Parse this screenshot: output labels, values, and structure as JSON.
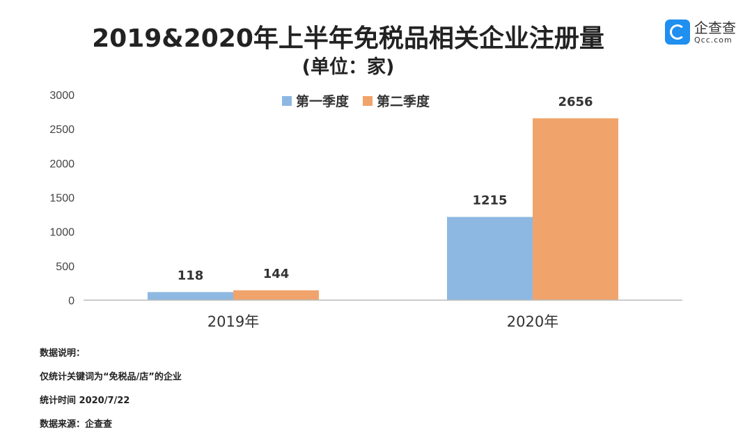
{
  "chart_data": {
    "type": "bar",
    "title": "2019&2020年上半年免税品相关企业注册量",
    "subtitle": "(单位：家)",
    "categories": [
      "2019年",
      "2020年"
    ],
    "series": [
      {
        "name": "第一季度",
        "color": "#8db8e2",
        "values": [
          118,
          1215
        ]
      },
      {
        "name": "第二季度",
        "color": "#f0a46c",
        "values": [
          144,
          2656
        ]
      }
    ],
    "xlabel": "",
    "ylabel": "",
    "ylim": [
      0,
      3000
    ],
    "yticks": [
      0,
      500,
      1000,
      1500,
      2000,
      2500,
      3000
    ],
    "grid": false,
    "legend": "top-center"
  },
  "logo": {
    "cn": "企查查",
    "en": "Qcc.com"
  },
  "notes": [
    "数据说明：",
    "仅统计关键词为“免税品/店”的企业",
    "统计时间 2020/7/22",
    "数据来源：企查查"
  ]
}
